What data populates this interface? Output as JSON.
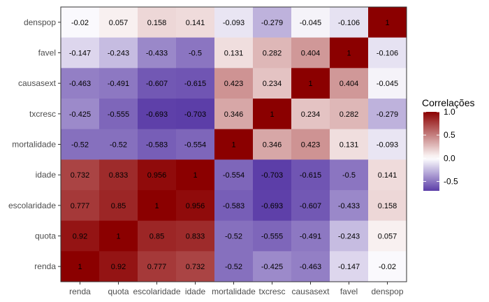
{
  "chart_data": {
    "type": "heatmap",
    "x_categories": [
      "renda",
      "quota",
      "escolaridade",
      "idade",
      "mortalidade",
      "txcresc",
      "causasext",
      "favel",
      "denspop"
    ],
    "y_categories": [
      "denspop",
      "favel",
      "causasext",
      "txcresc",
      "mortalidade",
      "idade",
      "escolaridade",
      "quota",
      "renda"
    ],
    "values": [
      [
        -0.02,
        0.057,
        0.158,
        0.141,
        -0.093,
        -0.279,
        -0.045,
        -0.106,
        1
      ],
      [
        -0.147,
        -0.243,
        -0.433,
        -0.5,
        0.131,
        0.282,
        0.404,
        1,
        -0.106
      ],
      [
        -0.463,
        -0.491,
        -0.607,
        -0.615,
        0.423,
        0.234,
        1,
        0.404,
        -0.045
      ],
      [
        -0.425,
        -0.555,
        -0.693,
        -0.703,
        0.346,
        1,
        0.234,
        0.282,
        -0.279
      ],
      [
        -0.52,
        -0.52,
        -0.583,
        -0.554,
        1,
        0.346,
        0.423,
        0.131,
        -0.093
      ],
      [
        0.732,
        0.833,
        0.956,
        1,
        -0.554,
        -0.703,
        -0.615,
        -0.5,
        0.141
      ],
      [
        0.777,
        0.85,
        1,
        0.956,
        -0.583,
        -0.693,
        -0.607,
        -0.433,
        0.158
      ],
      [
        0.92,
        1,
        0.85,
        0.833,
        -0.52,
        -0.555,
        -0.491,
        -0.243,
        0.057
      ],
      [
        1,
        0.92,
        0.777,
        0.732,
        -0.52,
        -0.425,
        -0.463,
        -0.147,
        -0.02
      ]
    ],
    "legend": {
      "title": "Correlações",
      "ticks": [
        "1.0",
        "0.5",
        "0.0",
        "-0.5"
      ],
      "tick_values": [
        1.0,
        0.5,
        0.0,
        -0.5
      ],
      "range": [
        -0.703,
        1.0
      ],
      "placement": "right"
    },
    "colors": {
      "low": "#5c3ea8",
      "mid": "#ffffff",
      "high": "#8b0000"
    },
    "grid": false
  }
}
